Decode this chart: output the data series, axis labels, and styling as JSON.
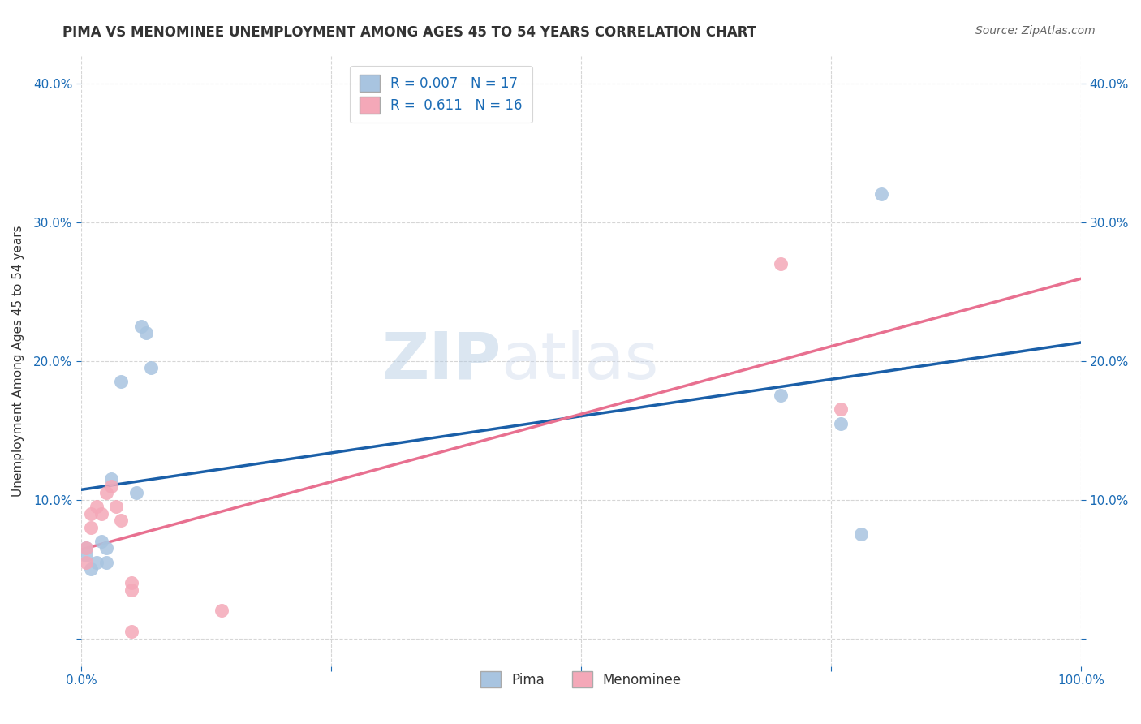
{
  "title": "PIMA VS MENOMINEE UNEMPLOYMENT AMONG AGES 45 TO 54 YEARS CORRELATION CHART",
  "source": "Source: ZipAtlas.com",
  "ylabel": "Unemployment Among Ages 45 to 54 years",
  "xlim": [
    0.0,
    1.0
  ],
  "ylim": [
    -0.02,
    0.42
  ],
  "x_ticks": [
    0.0,
    0.25,
    0.5,
    0.75,
    1.0
  ],
  "x_tick_labels": [
    "0.0%",
    "",
    "",
    "",
    "100.0%"
  ],
  "y_ticks": [
    0.0,
    0.1,
    0.2,
    0.3,
    0.4
  ],
  "y_tick_labels": [
    "",
    "10.0%",
    "20.0%",
    "30.0%",
    "40.0%"
  ],
  "pima_R": "0.007",
  "pima_N": "17",
  "menominee_R": "0.611",
  "menominee_N": "16",
  "pima_color": "#a8c4e0",
  "menominee_color": "#f4a8b8",
  "pima_line_color": "#1a5fa8",
  "menominee_line_color": "#e87090",
  "legend_text_color": "#1a6bb5",
  "watermark_zip": "ZIP",
  "watermark_atlas": "atlas",
  "pima_x": [
    0.005,
    0.005,
    0.01,
    0.015,
    0.02,
    0.025,
    0.025,
    0.03,
    0.04,
    0.055,
    0.06,
    0.065,
    0.07,
    0.7,
    0.76,
    0.78,
    0.8
  ],
  "pima_y": [
    0.065,
    0.06,
    0.05,
    0.055,
    0.07,
    0.065,
    0.055,
    0.115,
    0.185,
    0.105,
    0.225,
    0.22,
    0.195,
    0.175,
    0.155,
    0.075,
    0.32
  ],
  "menominee_x": [
    0.005,
    0.005,
    0.01,
    0.01,
    0.015,
    0.02,
    0.025,
    0.03,
    0.035,
    0.04,
    0.05,
    0.05,
    0.05,
    0.14,
    0.7,
    0.76
  ],
  "menominee_y": [
    0.065,
    0.055,
    0.08,
    0.09,
    0.095,
    0.09,
    0.105,
    0.11,
    0.095,
    0.085,
    0.005,
    0.035,
    0.04,
    0.02,
    0.27,
    0.165
  ],
  "background_color": "#ffffff",
  "grid_color": "#cccccc",
  "title_fontsize": 12,
  "source_fontsize": 10,
  "tick_fontsize": 11,
  "ylabel_fontsize": 11
}
